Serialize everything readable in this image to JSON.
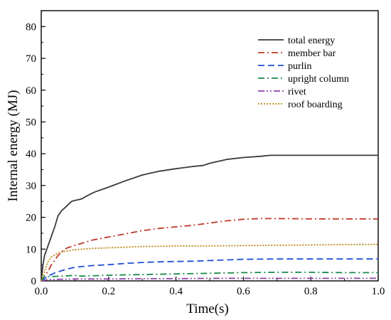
{
  "chart_data": {
    "type": "line",
    "xlabel": "Time(s)",
    "ylabel": "Internal energy (MJ)",
    "xlim": [
      0.0,
      1.0
    ],
    "ylim": [
      0,
      85
    ],
    "x_ticks": [
      "0.0",
      "0.2",
      "0.4",
      "0.6",
      "0.8",
      "1.0"
    ],
    "y_ticks": [
      "0",
      "10",
      "20",
      "30",
      "40",
      "50",
      "60",
      "70",
      "80"
    ],
    "legend_position": "top-right",
    "grid": false,
    "series": [
      {
        "name": "total energy",
        "color": "#3a3a3a",
        "dash": "solid",
        "x": [
          0,
          0.005,
          0.01,
          0.02,
          0.03,
          0.04,
          0.05,
          0.06,
          0.07,
          0.08,
          0.09,
          0.1,
          0.12,
          0.14,
          0.16,
          0.2,
          0.25,
          0.3,
          0.35,
          0.4,
          0.45,
          0.48,
          0.5,
          0.55,
          0.6,
          0.65,
          0.68,
          0.7,
          0.8,
          0.9,
          1.0
        ],
        "y": [
          0,
          5,
          8,
          11,
          14,
          17,
          20.5,
          22,
          23,
          24,
          25,
          25.3,
          25.8,
          27,
          28,
          29.5,
          31.5,
          33.3,
          34.5,
          35.3,
          36,
          36.3,
          37,
          38.2,
          38.8,
          39.2,
          39.5,
          39.5,
          39.5,
          39.5,
          39.5
        ]
      },
      {
        "name": "member bar",
        "color": "#c0392b",
        "dash": "dashdot",
        "x": [
          0,
          0.01,
          0.02,
          0.03,
          0.04,
          0.05,
          0.06,
          0.07,
          0.08,
          0.1,
          0.12,
          0.15,
          0.2,
          0.25,
          0.3,
          0.35,
          0.4,
          0.45,
          0.5,
          0.55,
          0.6,
          0.65,
          0.7,
          0.8,
          0.9,
          1.0
        ],
        "y": [
          0,
          1.5,
          3,
          5,
          6.5,
          8,
          9,
          10,
          10.5,
          11.2,
          11.8,
          12.8,
          13.8,
          14.8,
          15.8,
          16.5,
          17,
          17.5,
          18.2,
          18.9,
          19.4,
          19.6,
          19.6,
          19.5,
          19.5,
          19.5
        ]
      },
      {
        "name": "purlin",
        "color": "#1f4fd6",
        "dash": "dash",
        "x": [
          0,
          0.02,
          0.04,
          0.06,
          0.08,
          0.1,
          0.15,
          0.2,
          0.25,
          0.3,
          0.35,
          0.4,
          0.45,
          0.5,
          0.55,
          0.6,
          0.7,
          0.8,
          0.9,
          1.0
        ],
        "y": [
          0,
          1.5,
          2.5,
          3.2,
          3.8,
          4.3,
          4.8,
          5.1,
          5.5,
          5.8,
          6.0,
          6.1,
          6.2,
          6.4,
          6.6,
          6.8,
          6.9,
          6.9,
          6.9,
          6.9
        ]
      },
      {
        "name": "upright column",
        "color": "#1a8a4a",
        "dash": "dashdot",
        "x": [
          0,
          0.01,
          0.02,
          0.04,
          0.06,
          0.08,
          0.1,
          0.12,
          0.15,
          0.18,
          0.2,
          0.25,
          0.3,
          0.35,
          0.4,
          0.5,
          0.6,
          0.7,
          0.8,
          0.9,
          1.0
        ],
        "y": [
          0,
          1.5,
          1.3,
          1.4,
          1.5,
          1.6,
          1.7,
          1.5,
          1.6,
          1.7,
          1.8,
          1.9,
          2.0,
          2.1,
          2.2,
          2.4,
          2.6,
          2.7,
          2.7,
          2.6,
          2.6
        ]
      },
      {
        "name": "rivet",
        "color": "#8e44ad",
        "dash": "dashdotdot",
        "x": [
          0,
          0.02,
          0.05,
          0.1,
          0.2,
          0.3,
          0.4,
          0.5,
          0.6,
          0.7,
          0.8,
          0.9,
          1.0
        ],
        "y": [
          0,
          0.4,
          0.5,
          0.6,
          0.6,
          0.7,
          0.7,
          0.8,
          0.8,
          0.8,
          0.8,
          0.8,
          0.8
        ]
      },
      {
        "name": "roof boarding",
        "color": "#b8860b",
        "dash": "dot",
        "x": [
          0,
          0.01,
          0.02,
          0.03,
          0.05,
          0.07,
          0.1,
          0.15,
          0.2,
          0.25,
          0.3,
          0.35,
          0.4,
          0.5,
          0.6,
          0.7,
          0.8,
          0.9,
          1.0
        ],
        "y": [
          0,
          3,
          6,
          7.5,
          8.8,
          9.3,
          9.8,
          10.2,
          10.4,
          10.6,
          10.8,
          10.9,
          11.0,
          11.0,
          11.1,
          11.2,
          11.3,
          11.4,
          11.5
        ]
      }
    ]
  }
}
